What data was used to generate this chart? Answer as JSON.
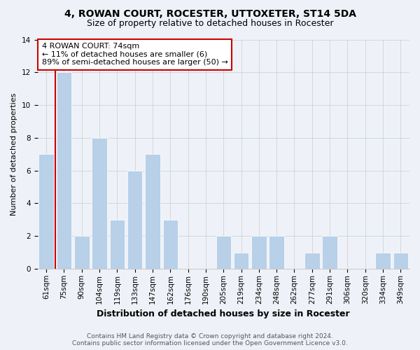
{
  "title": "4, ROWAN COURT, ROCESTER, UTTOXETER, ST14 5DA",
  "subtitle": "Size of property relative to detached houses in Rocester",
  "xlabel": "Distribution of detached houses by size in Rocester",
  "ylabel": "Number of detached properties",
  "categories": [
    "61sqm",
    "75sqm",
    "90sqm",
    "104sqm",
    "119sqm",
    "133sqm",
    "147sqm",
    "162sqm",
    "176sqm",
    "190sqm",
    "205sqm",
    "219sqm",
    "234sqm",
    "248sqm",
    "262sqm",
    "277sqm",
    "291sqm",
    "306sqm",
    "320sqm",
    "334sqm",
    "349sqm"
  ],
  "values": [
    7,
    12,
    2,
    8,
    3,
    6,
    7,
    3,
    0,
    0,
    2,
    1,
    2,
    2,
    0,
    1,
    2,
    0,
    0,
    1,
    1
  ],
  "bar_color": "#b8d0e8",
  "red_line_x": 0.5,
  "annotation_text": "4 ROWAN COURT: 74sqm\n← 11% of detached houses are smaller (6)\n89% of semi-detached houses are larger (50) →",
  "annotation_box_color": "#ffffff",
  "annotation_box_edgecolor": "#cc0000",
  "ylim": [
    0,
    14
  ],
  "yticks": [
    0,
    2,
    4,
    6,
    8,
    10,
    12,
    14
  ],
  "footer_line1": "Contains HM Land Registry data © Crown copyright and database right 2024.",
  "footer_line2": "Contains public sector information licensed under the Open Government Licence v3.0.",
  "bg_color": "#eef2f8",
  "grid_color": "#cccccc",
  "title_fontsize": 10,
  "subtitle_fontsize": 9,
  "xlabel_fontsize": 9,
  "ylabel_fontsize": 8,
  "tick_fontsize": 7.5,
  "annotation_fontsize": 8,
  "footer_fontsize": 6.5
}
